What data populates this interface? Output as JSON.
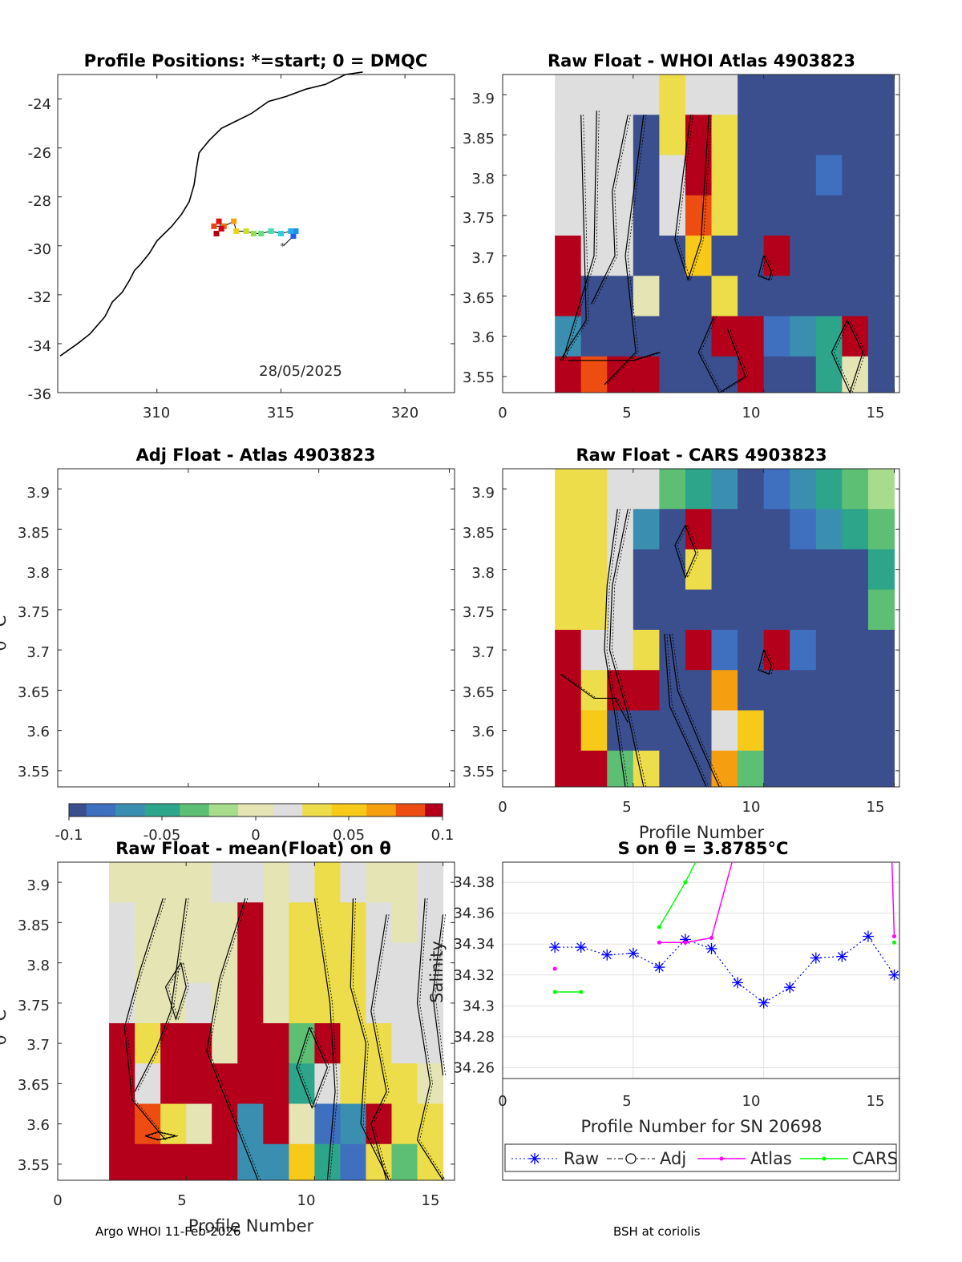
{
  "colors": {
    "axis": "#262626",
    "coast": "#000000",
    "raw": "#0000ff",
    "atlas": "#ff00ff",
    "cars": "#00ff00",
    "adj": "#000000",
    "colormap": [
      "#3b4f8f",
      "#3f6fbf",
      "#3a8fb0",
      "#2ca58a",
      "#5dbf73",
      "#a7dc8c",
      "#e4e4b4",
      "#dedede",
      "#eedd4a",
      "#f7c918",
      "#f59e0f",
      "#ee4d12",
      "#b5001c"
    ]
  },
  "panels": {
    "map": {
      "title": "Profile Positions: *=start; 0 = DMQC",
      "date": "28/05/2025",
      "xticks": [
        "310",
        "315",
        "320"
      ],
      "yticks": [
        "-24",
        "-26",
        "-28",
        "-30",
        "-32",
        "-34",
        "-36"
      ]
    },
    "atlas": {
      "title": "Raw Float - WHOI Atlas  4903823"
    },
    "adj": {
      "title": "Adj Float - Atlas  4903823"
    },
    "cars": {
      "title": "Raw Float - CARS  4903823"
    },
    "mean": {
      "title": "Raw Float - mean(Float) on θ"
    },
    "salinity": {
      "title": "S on θ = 3.8785°C"
    }
  },
  "colorbar": {
    "ticks": [
      "-0.1",
      "-0.05",
      "0",
      "0.05",
      "0.1"
    ]
  },
  "theta_ticks": [
    "3.9",
    "3.85",
    "3.8",
    "3.75",
    "3.7",
    "3.65",
    "3.6",
    "3.55"
  ],
  "profile_ticks": [
    "0",
    "5",
    "10",
    "15"
  ],
  "labels": {
    "theta_axis": "θ °C",
    "profile_number": "Profile Number",
    "profile_number_sn": "Profile Number for SN 20698",
    "salinity": "Salinity"
  },
  "legend": {
    "raw": "Raw",
    "adj": "Adj",
    "atlas": "Atlas",
    "cars": "CARS"
  },
  "footer": {
    "left": "Argo WHOI 11-Feb-2026",
    "right": "BSH at coriolis"
  },
  "chart_data": [
    {
      "type": "scatter",
      "title": "Profile Positions: *=start; 0 = DMQC",
      "xlim": [
        306,
        322
      ],
      "ylim": [
        -36,
        -23
      ],
      "coastline": [
        [
          306.1,
          -34.5
        ],
        [
          306.8,
          -34.0
        ],
        [
          307.3,
          -33.6
        ],
        [
          307.9,
          -32.9
        ],
        [
          308.2,
          -32.3
        ],
        [
          308.6,
          -31.9
        ],
        [
          308.9,
          -31.4
        ],
        [
          309.1,
          -31.0
        ],
        [
          309.3,
          -30.8
        ],
        [
          309.7,
          -30.3
        ],
        [
          310.0,
          -29.8
        ],
        [
          310.6,
          -29.2
        ],
        [
          311.0,
          -28.7
        ],
        [
          311.3,
          -28.2
        ],
        [
          311.5,
          -27.5
        ],
        [
          311.6,
          -26.8
        ],
        [
          311.7,
          -26.2
        ],
        [
          312.1,
          -25.7
        ],
        [
          312.6,
          -25.2
        ],
        [
          313.2,
          -24.9
        ],
        [
          313.8,
          -24.6
        ],
        [
          314.5,
          -24.1
        ],
        [
          315.2,
          -23.9
        ],
        [
          316.0,
          -23.6
        ],
        [
          316.8,
          -23.4
        ],
        [
          317.6,
          -23.0
        ],
        [
          318.3,
          -22.9
        ]
      ],
      "track": [
        [
          315.1,
          -30.0
        ],
        [
          315.5,
          -29.6
        ],
        [
          315.6,
          -29.4
        ],
        [
          315.4,
          -29.4
        ],
        [
          315.0,
          -29.5
        ],
        [
          314.6,
          -29.4
        ],
        [
          314.2,
          -29.5
        ],
        [
          313.9,
          -29.5
        ],
        [
          313.6,
          -29.4
        ],
        [
          313.2,
          -29.4
        ],
        [
          313.1,
          -29.0
        ],
        [
          312.7,
          -29.2
        ],
        [
          312.3,
          -29.2
        ],
        [
          312.5,
          -29.0
        ],
        [
          312.6,
          -29.3
        ],
        [
          312.4,
          -29.5
        ]
      ]
    },
    {
      "type": "heatmap",
      "title": "Raw Float - WHOI Atlas  4903823",
      "xlim": [
        0,
        15
      ],
      "ylim": [
        3.53,
        3.925
      ],
      "x_edges": [
        2,
        3,
        4,
        5,
        6,
        7,
        8,
        9,
        10,
        11,
        12,
        13,
        14,
        15
      ],
      "y_edges": [
        3.925,
        3.875,
        3.825,
        3.775,
        3.725,
        3.675,
        3.625,
        3.575,
        3.525
      ],
      "values": [
        [
          0.02,
          0.015,
          0.01,
          0.015,
          0.025,
          0.01,
          0.015,
          -0.1,
          -0.1,
          -0.1,
          -0.1,
          -0.1,
          -0.1
        ],
        [
          0.02,
          0.015,
          0.01,
          -0.1,
          0.025,
          0.1,
          0.03,
          -0.1,
          -0.1,
          -0.1,
          -0.1,
          -0.1,
          -0.1
        ],
        [
          0.02,
          0.015,
          0.01,
          -0.1,
          0.015,
          0.1,
          0.03,
          -0.1,
          -0.1,
          -0.1,
          -0.085,
          -0.1,
          -0.1
        ],
        [
          0.02,
          0.015,
          0.01,
          -0.1,
          0.01,
          0.09,
          0.03,
          -0.1,
          -0.1,
          -0.1,
          -0.1,
          -0.1,
          -0.1
        ],
        [
          0.1,
          0.01,
          0.01,
          -0.1,
          -0.1,
          0.045,
          -0.1,
          -0.1,
          0.1,
          -0.1,
          -0.1,
          -0.1,
          -0.1
        ],
        [
          0.1,
          -0.1,
          -0.1,
          0.005,
          -0.1,
          -0.1,
          0.04,
          -0.1,
          -0.1,
          -0.1,
          -0.1,
          -0.1,
          -0.1
        ],
        [
          -0.06,
          -0.1,
          -0.1,
          -0.1,
          -0.1,
          -0.1,
          0.1,
          0.1,
          -0.08,
          -0.06,
          -0.045,
          0.1,
          -0.1
        ],
        [
          0.1,
          0.09,
          0.1,
          0.1,
          -0.1,
          -0.1,
          -0.1,
          0.1,
          -0.1,
          -0.1,
          -0.045,
          0.005,
          -0.1
        ]
      ]
    },
    {
      "type": "heatmap",
      "title": "Adj Float - Atlas  4903823",
      "xlim": [
        0,
        15
      ],
      "ylim": [
        3.53,
        3.925
      ],
      "values": []
    },
    {
      "type": "heatmap",
      "title": "Raw Float - CARS  4903823",
      "xlim": [
        0,
        15
      ],
      "ylim": [
        3.53,
        3.925
      ],
      "x_edges": [
        2,
        3,
        4,
        5,
        6,
        7,
        8,
        9,
        10,
        11,
        12,
        13,
        14,
        15
      ],
      "y_edges": [
        3.925,
        3.875,
        3.825,
        3.775,
        3.725,
        3.675,
        3.625,
        3.575,
        3.525
      ],
      "values": [
        [
          0.04,
          0.04,
          0.015,
          0.015,
          -0.035,
          -0.045,
          -0.07,
          -0.1,
          -0.085,
          -0.07,
          -0.05,
          -0.035,
          -0.02
        ],
        [
          0.04,
          0.03,
          0.015,
          -0.06,
          -0.1,
          0.1,
          -0.1,
          -0.1,
          -0.1,
          -0.085,
          -0.07,
          -0.05,
          -0.035
        ],
        [
          0.04,
          0.03,
          0.015,
          -0.1,
          -0.1,
          0.025,
          -0.1,
          -0.1,
          -0.1,
          -0.1,
          -0.1,
          -0.1,
          -0.05
        ],
        [
          0.04,
          0.03,
          0.015,
          -0.1,
          -0.1,
          -0.1,
          -0.1,
          -0.1,
          -0.1,
          -0.1,
          -0.1,
          -0.1,
          -0.03
        ],
        [
          0.1,
          0.02,
          0.015,
          0.025,
          -0.1,
          0.1,
          -0.08,
          -0.1,
          0.1,
          -0.08,
          -0.1,
          -0.1,
          -0.1
        ],
        [
          0.1,
          0.035,
          0.1,
          0.1,
          -0.1,
          -0.1,
          0.06,
          -0.1,
          -0.1,
          -0.1,
          -0.1,
          -0.1,
          -0.1
        ],
        [
          0.1,
          0.045,
          -0.1,
          -0.1,
          -0.1,
          -0.1,
          0.015,
          0.055,
          -0.1,
          -0.1,
          -0.1,
          -0.1,
          -0.1
        ],
        [
          0.1,
          0.1,
          -0.04,
          0.025,
          -0.1,
          -0.1,
          0.07,
          -0.04,
          -0.1,
          -0.1,
          -0.1,
          -0.1,
          -0.1
        ]
      ]
    },
    {
      "type": "heatmap",
      "title": "Raw Float - mean(Float) on θ",
      "xlim": [
        0,
        15.5
      ],
      "ylim": [
        3.53,
        3.925
      ],
      "x_edges": [
        2,
        3,
        4,
        5,
        6,
        7,
        8,
        9,
        10,
        11,
        12,
        13,
        14,
        15
      ],
      "y_edges": [
        3.925,
        3.875,
        3.825,
        3.775,
        3.725,
        3.675,
        3.625,
        3.575,
        3.525
      ],
      "values": [
        [
          0.005,
          0.005,
          0.005,
          0.005,
          0.012,
          0.015,
          0.005,
          0.02,
          0.025,
          0.02,
          0.005,
          0.005,
          0.015
        ],
        [
          0.012,
          0.005,
          0.005,
          0.005,
          0.005,
          0.1,
          0.005,
          0.025,
          0.03,
          0.025,
          0.01,
          0.005,
          0.01
        ],
        [
          0.012,
          0.005,
          0.005,
          0.005,
          0.005,
          0.1,
          0.005,
          0.025,
          0.03,
          0.025,
          0.015,
          0.01,
          0.015
        ],
        [
          0.018,
          0.005,
          0.005,
          0.015,
          0.005,
          0.1,
          0.005,
          0.025,
          0.03,
          0.025,
          0.02,
          0.015,
          0.02
        ],
        [
          0.1,
          0.025,
          0.1,
          0.1,
          0.005,
          0.1,
          0.1,
          -0.035,
          0.1,
          0.025,
          0.035,
          0.01,
          0.02
        ],
        [
          0.1,
          0.02,
          0.1,
          0.1,
          0.1,
          0.1,
          0.1,
          -0.05,
          0.02,
          0.03,
          0.035,
          0.025,
          0.005
        ],
        [
          0.1,
          0.09,
          0.035,
          0.005,
          0.1,
          -0.06,
          0.1,
          0.005,
          -0.08,
          -0.065,
          0.1,
          0.025,
          0.03
        ],
        [
          0.1,
          0.1,
          0.1,
          0.1,
          0.1,
          -0.07,
          -0.07,
          0.045,
          -0.05,
          -0.08,
          0.025,
          -0.035,
          0.03
        ]
      ]
    },
    {
      "type": "line",
      "title": "S on θ = 3.8785°C",
      "xlabel": "Profile Number for SN 20698",
      "ylabel": "Salinity",
      "xlim": [
        0,
        15.2
      ],
      "ylim": [
        34.253,
        34.393
      ],
      "series": [
        {
          "name": "Raw",
          "x": [
            2,
            3,
            4,
            5,
            6,
            7,
            8,
            9,
            10,
            11,
            12,
            13,
            14,
            15
          ],
          "y": [
            34.338,
            34.338,
            34.333,
            34.334,
            34.325,
            34.343,
            34.337,
            34.315,
            34.302,
            34.312,
            34.331,
            34.332,
            34.345,
            34.32
          ]
        },
        {
          "name": "Adj",
          "x": [],
          "y": []
        },
        {
          "name": "Atlas",
          "segments": [
            {
              "x": [
                2
              ],
              "y": [
                34.324
              ]
            },
            {
              "x": [
                6,
                7,
                8,
                8.9
              ],
              "y": [
                34.341,
                34.341,
                34.344,
                34.4
              ]
            },
            {
              "x": [
                14.9,
                15
              ],
              "y": [
                34.4,
                34.345
              ]
            }
          ]
        },
        {
          "name": "CARS",
          "segments": [
            {
              "x": [
                2,
                3
              ],
              "y": [
                34.309,
                34.309
              ]
            },
            {
              "x": [
                6,
                7,
                7.6
              ],
              "y": [
                34.351,
                34.38,
                34.4
              ]
            },
            {
              "x": [
                15
              ],
              "y": [
                34.341
              ]
            }
          ]
        }
      ]
    }
  ]
}
